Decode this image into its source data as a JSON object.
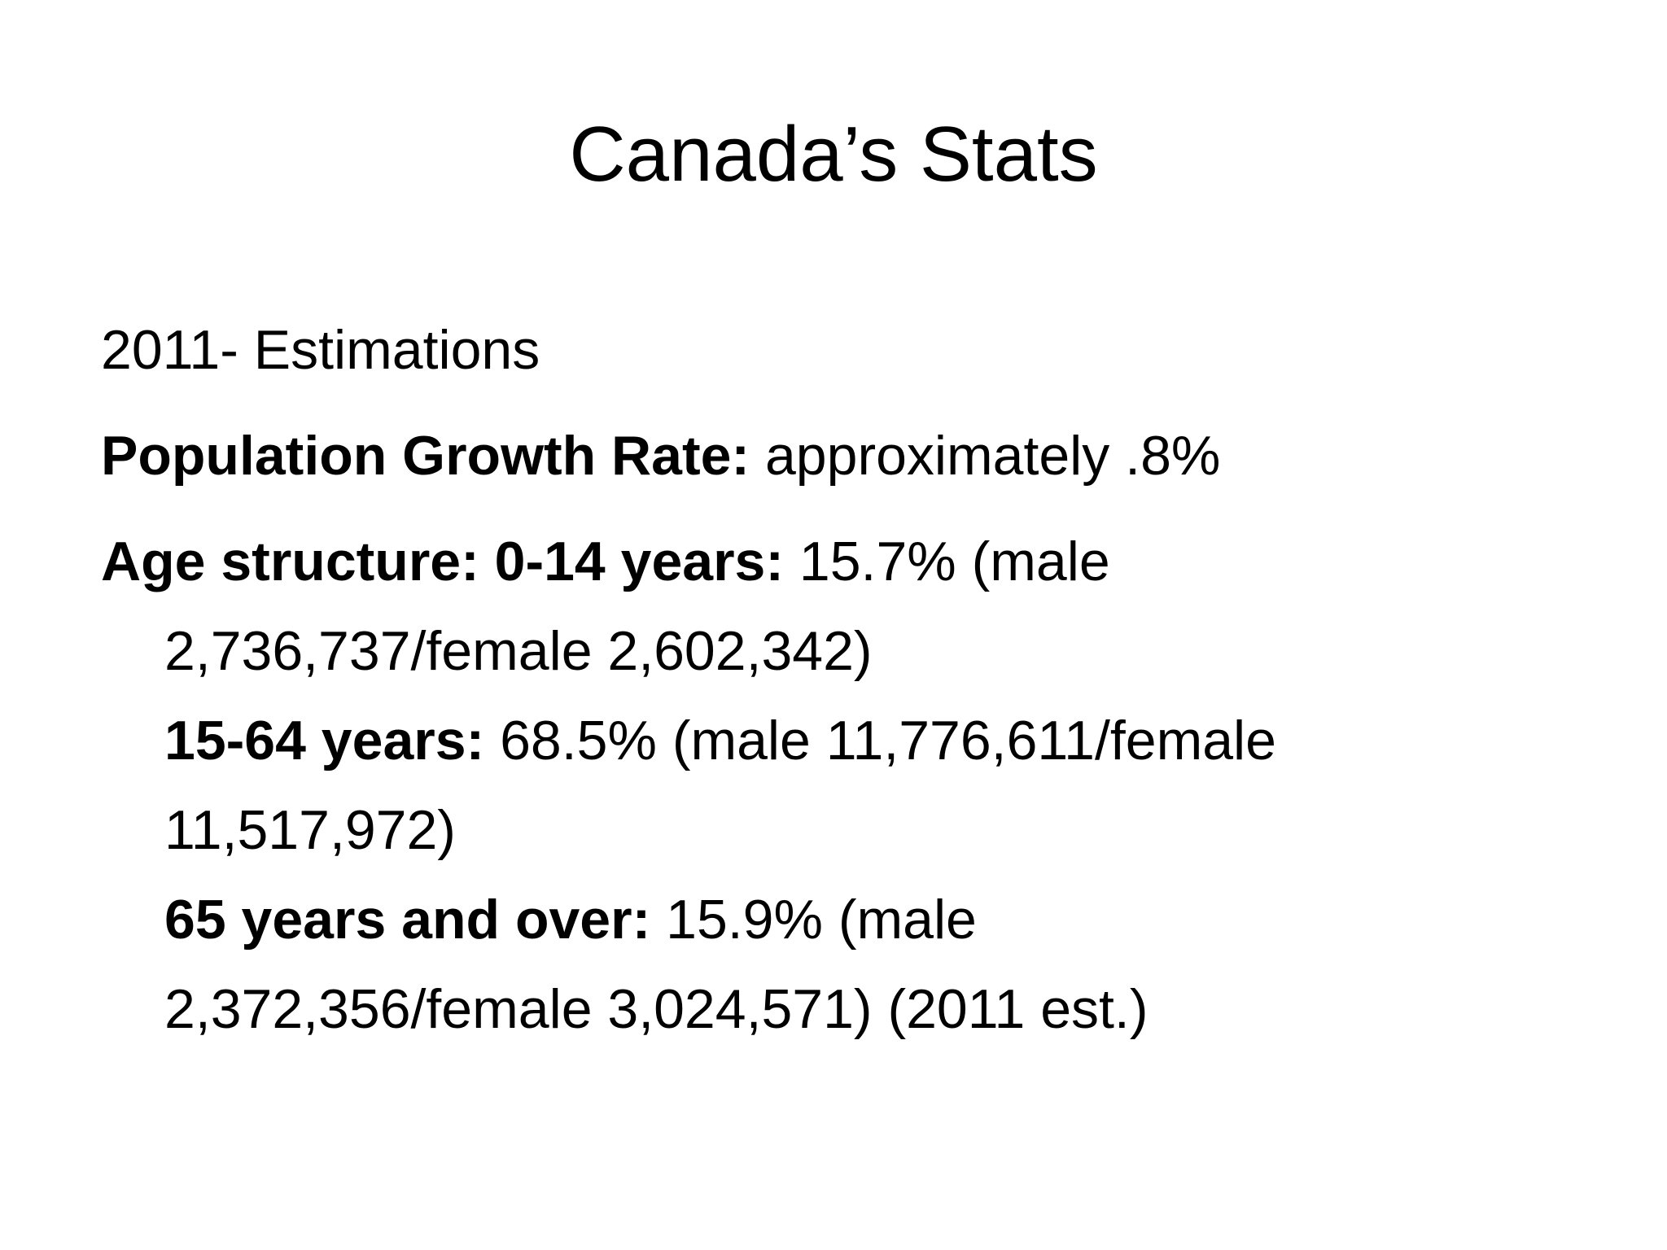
{
  "title": "Canada’s Stats",
  "body": [
    {
      "lines": [
        {
          "text": "2011- Estimations"
        }
      ]
    },
    {
      "lines": [
        {
          "bold": "Population Growth Rate:",
          "text": "approximately .8%"
        }
      ]
    },
    {
      "lines": [
        {
          "bold": "Age structure: 0-14 years:",
          "text": "15.7% (male"
        },
        {
          "text": "2,736,737/female 2,602,342)"
        },
        {
          "bold": "15-64 years:",
          "text": "68.5% (male 11,776,611/female"
        },
        {
          "text": "11,517,972)"
        },
        {
          "bold": "65 years and over:",
          "text": "15.9% (male"
        },
        {
          "text": "2,372,356/female 3,024,571) (2011 est.)"
        }
      ]
    }
  ]
}
